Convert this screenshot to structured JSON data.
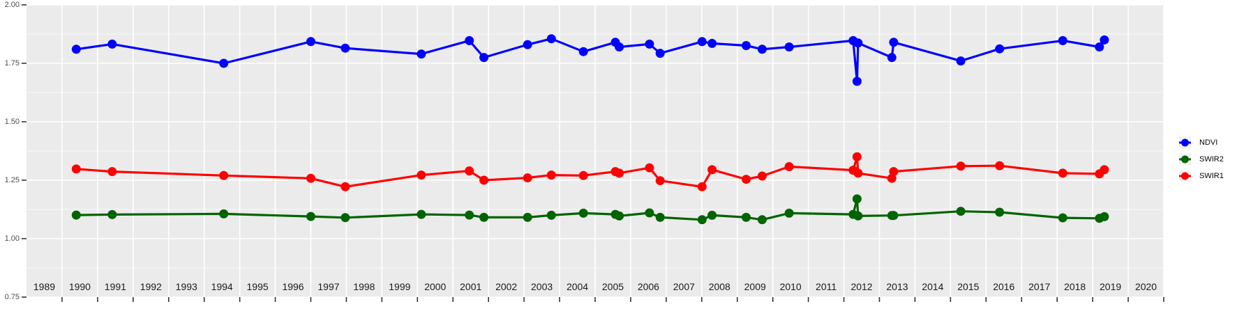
{
  "chart_data": {
    "type": "line",
    "title": "",
    "xlabel": "",
    "ylabel": "",
    "panel_bg": "#EBEBEB",
    "grid_color": "#FFFFFF",
    "tick_color": "#333333",
    "x_label_color": "#1A1A1A",
    "y_label_color": "#4D4D4D",
    "legend_key_fill": "#F2F2F2",
    "legend_text_color": "#000000",
    "xlim": [
      1988.5,
      2020.5
    ],
    "ylim": [
      0.75,
      2.0
    ],
    "grid": "on",
    "legend_position": "right",
    "x_tick_labels": [
      "1989",
      "1990",
      "1991",
      "1992",
      "1993",
      "1994",
      "1995",
      "1996",
      "1997",
      "1998",
      "1999",
      "2000",
      "2001",
      "2002",
      "2003",
      "2004",
      "2005",
      "2006",
      "2007",
      "2008",
      "2009",
      "2010",
      "2011",
      "2012",
      "2013",
      "2014",
      "2015",
      "2016",
      "2017",
      "2018",
      "2019",
      "2020"
    ],
    "x_tick_values": [
      1989,
      1990,
      1991,
      1992,
      1993,
      1994,
      1995,
      1996,
      1997,
      1998,
      1999,
      2000,
      2001,
      2002,
      2003,
      2004,
      2005,
      2006,
      2007,
      2008,
      2009,
      2010,
      2011,
      2012,
      2013,
      2014,
      2015,
      2016,
      2017,
      2018,
      2019,
      2020
    ],
    "y_tick_labels": [
      "0.75",
      "1.00",
      "1.25",
      "1.50",
      "1.75",
      "2.00"
    ],
    "y_tick_values": [
      0.75,
      1.0,
      1.25,
      1.5,
      1.75,
      2.0
    ],
    "y_minor_tick_values": [
      0.875,
      1.125,
      1.375,
      1.625,
      1.875
    ],
    "x": [
      1989.9,
      1990.91,
      1994.05,
      1996.5,
      1997.47,
      1999.61,
      2000.96,
      2001.37,
      2002.6,
      2003.27,
      2004.17,
      2005.07,
      2005.18,
      2006.03,
      2006.33,
      2007.51,
      2007.79,
      2008.75,
      2009.2,
      2009.96,
      2011.76,
      2011.87,
      2011.9,
      2012.85,
      2012.9,
      2014.79,
      2015.88,
      2017.66,
      2018.69,
      2018.83
    ],
    "series": [
      {
        "name": "NDVI",
        "color": "#0000FF",
        "values": [
          1.81,
          1.832,
          1.75,
          1.843,
          1.815,
          1.79,
          1.847,
          1.775,
          1.83,
          1.855,
          1.8,
          1.84,
          1.82,
          1.832,
          1.793,
          1.843,
          1.835,
          1.826,
          1.81,
          1.82,
          1.847,
          1.673,
          1.837,
          1.775,
          1.84,
          1.76,
          1.812,
          1.847,
          1.82,
          1.85
        ]
      },
      {
        "name": "SWIR2",
        "color": "#006400",
        "values": [
          1.101,
          1.103,
          1.106,
          1.095,
          1.09,
          1.104,
          1.101,
          1.091,
          1.091,
          1.1,
          1.109,
          1.104,
          1.097,
          1.11,
          1.091,
          1.081,
          1.1,
          1.091,
          1.081,
          1.109,
          1.104,
          1.17,
          1.097,
          1.099,
          1.099,
          1.117,
          1.113,
          1.089,
          1.087,
          1.094
        ]
      },
      {
        "name": "SWIR1",
        "color": "#FF0000",
        "values": [
          1.298,
          1.287,
          1.27,
          1.258,
          1.222,
          1.272,
          1.29,
          1.25,
          1.26,
          1.272,
          1.27,
          1.287,
          1.28,
          1.303,
          1.248,
          1.222,
          1.295,
          1.254,
          1.268,
          1.308,
          1.293,
          1.35,
          1.28,
          1.258,
          1.287,
          1.31,
          1.312,
          1.28,
          1.277,
          1.295
        ]
      }
    ],
    "legend_entries": [
      "NDVI",
      "SWIR2",
      "SWIR1"
    ]
  }
}
